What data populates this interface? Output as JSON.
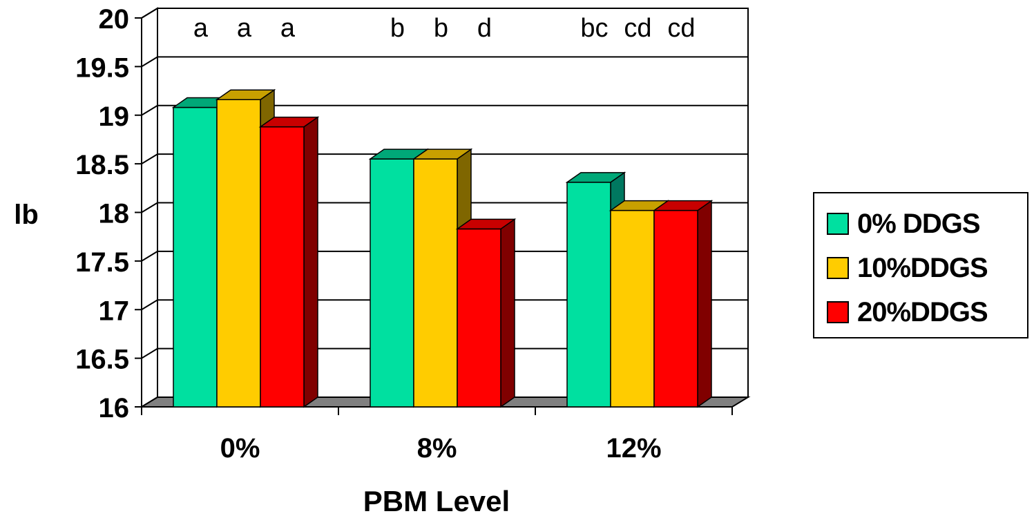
{
  "chart_data": {
    "type": "bar",
    "categories": [
      "0%",
      "8%",
      "12%"
    ],
    "series": [
      {
        "name": "0% DDGS",
        "values": [
          19.08,
          18.55,
          18.31
        ],
        "colors": {
          "front": "#00E0A0",
          "top": "#00A878",
          "side": "#007860"
        }
      },
      {
        "name": "10%DDGS",
        "values": [
          19.16,
          18.55,
          18.02
        ],
        "colors": {
          "front": "#FFCC00",
          "top": "#C8A000",
          "side": "#7F6600"
        }
      },
      {
        "name": "20%DDGS",
        "values": [
          18.88,
          17.83,
          18.02
        ],
        "colors": {
          "front": "#FF0000",
          "top": "#C80000",
          "side": "#800000"
        }
      }
    ],
    "significance_letters": [
      [
        "a",
        "a",
        "a"
      ],
      [
        "b",
        "b",
        "d"
      ],
      [
        "bc",
        "cd",
        "cd"
      ]
    ],
    "ylabel": "lb",
    "xlabel": "PBM Level",
    "ylim": [
      16,
      20
    ],
    "yticks": [
      "16",
      "16.5",
      "17",
      "17.5",
      "18",
      "18.5",
      "19",
      "19.5",
      "20"
    ],
    "grid": true,
    "legend_placement": "right",
    "floor_color": "#808080"
  }
}
